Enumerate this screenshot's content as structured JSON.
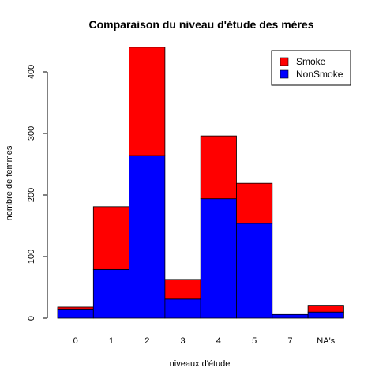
{
  "chart_data": {
    "type": "bar",
    "stacked": true,
    "title": "Comparaison du niveau d'étude des mères",
    "xlabel": "niveaux d'étude",
    "ylabel": "nombre de femmes",
    "categories": [
      "0",
      "1",
      "2",
      "3",
      "4",
      "5",
      "7",
      "NA's"
    ],
    "ylim": [
      0,
      440
    ],
    "yticks": [
      0,
      100,
      200,
      300,
      400
    ],
    "series": [
      {
        "name": "NonSmoke",
        "color": "#0000FF",
        "values": [
          15,
          79,
          264,
          31,
          194,
          154,
          6,
          10
        ]
      },
      {
        "name": "Smoke",
        "color": "#FF0000",
        "values": [
          3,
          102,
          176,
          32,
          102,
          65,
          0,
          11
        ]
      }
    ],
    "legend": {
      "placement": "top-right",
      "entries": [
        {
          "label": "Smoke",
          "color": "#FF0000"
        },
        {
          "label": "NonSmoke",
          "color": "#0000FF"
        }
      ]
    },
    "grid": false
  }
}
